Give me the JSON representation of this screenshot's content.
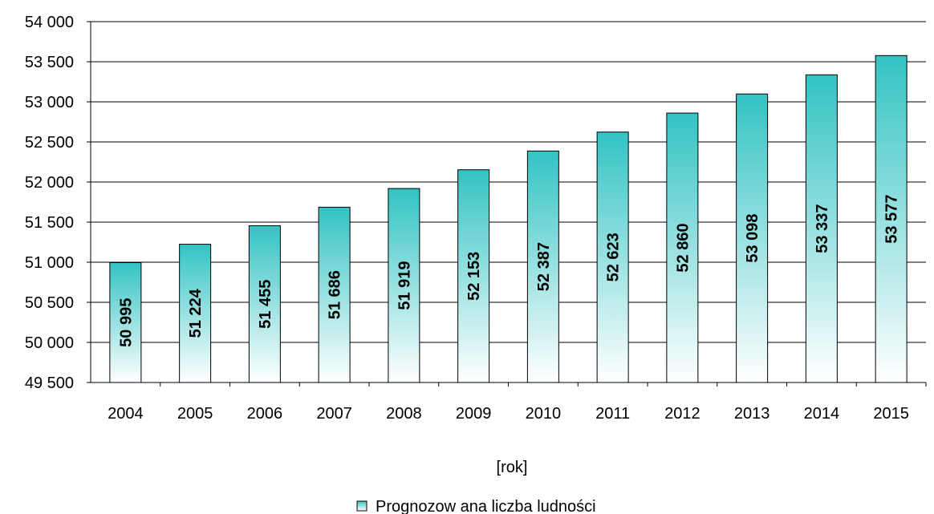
{
  "chart_data": {
    "type": "bar",
    "categories": [
      "2004",
      "2005",
      "2006",
      "2007",
      "2008",
      "2009",
      "2010",
      "2011",
      "2012",
      "2013",
      "2014",
      "2015"
    ],
    "series": [
      {
        "name": "Prognozow ana liczba ludności",
        "values": [
          50995,
          51224,
          51455,
          51686,
          51919,
          52153,
          52387,
          52623,
          52860,
          53098,
          53337,
          53577
        ],
        "data_labels": [
          "50 995",
          "51 224",
          "51 455",
          "51 686",
          "51 919",
          "52 153",
          "52 387",
          "52 623",
          "52 860",
          "53 098",
          "53 337",
          "53 577"
        ]
      }
    ],
    "xlabel": "[rok]",
    "ylabel": "",
    "ylim": [
      49500,
      54000
    ],
    "yticks": [
      49500,
      50000,
      50500,
      51000,
      51500,
      52000,
      52500,
      53000,
      53500,
      54000
    ],
    "ytick_labels": [
      "49 500",
      "50 000",
      "50 500",
      "51 000",
      "51 500",
      "52 000",
      "52 500",
      "53 000",
      "53 500",
      "54 000"
    ],
    "grid": true,
    "legend_position": "bottom",
    "colors": {
      "bar_top": "#33c3c3",
      "bar_bottom": "#ffffff",
      "bar_outline": "#000000",
      "grid": "#000000"
    }
  }
}
